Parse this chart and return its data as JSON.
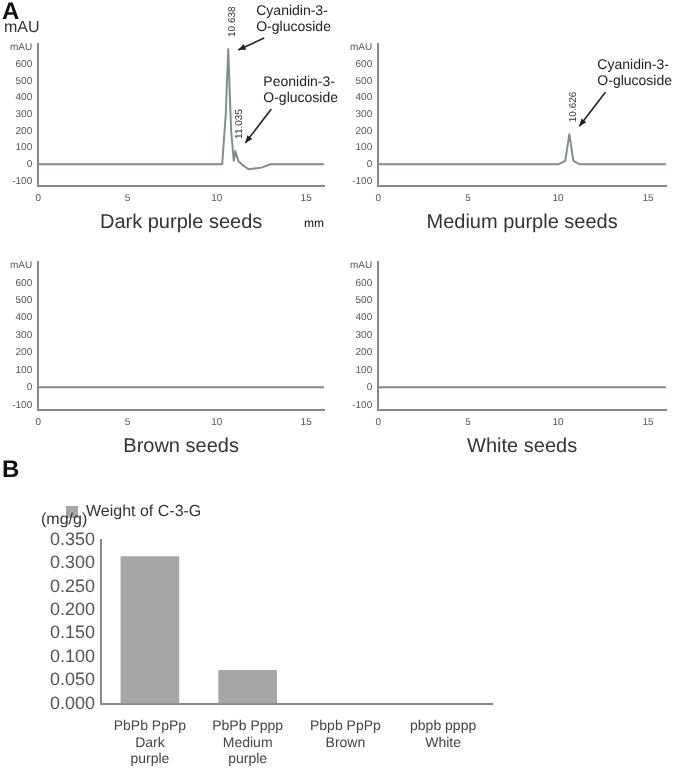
{
  "chart_data": [
    {
      "type": "line",
      "xlabel": "Dark purple seeds",
      "ylabel": "mAU",
      "annotations": [
        "A",
        "mm",
        {
          "text": "Cyanidin-3-\nO-glucoside",
          "x": 10.638,
          "y": 690
        },
        {
          "text": "Peonidin-3-\nO-glucoside",
          "x": 11.035,
          "y": 80
        },
        {
          "text": "10.638",
          "x": 10.638,
          "y": 690
        },
        {
          "text": "11.035",
          "x": 11.035,
          "y": 80
        }
      ],
      "xlim": [
        0,
        16
      ],
      "xticks": [
        0,
        5,
        10,
        15
      ],
      "ylim": [
        -130,
        720
      ],
      "yticks": [
        -100,
        0,
        100,
        200,
        300,
        400,
        500,
        600,
        {
          "value": 700,
          "label": "mAU"
        }
      ],
      "grid": false,
      "legend": false,
      "marker": "none",
      "line_style": "solid",
      "series": [
        {
          "color": "#7f8f8f",
          "x": [
            0,
            5,
            10,
            10.3,
            10.5,
            10.638,
            10.8,
            10.95,
            11.035,
            11.2,
            11.5,
            11.8,
            12.5,
            13,
            16
          ],
          "values": [
            0,
            0,
            0,
            0,
            300,
            690,
            200,
            20,
            80,
            20,
            -10,
            -30,
            -20,
            0,
            0
          ]
        }
      ]
    },
    {
      "type": "line",
      "xlabel": "Medium purple seeds",
      "annotations": [
        {
          "text": "Cyanidin-3-\nO-glucoside",
          "x": 10.626,
          "y": 180
        },
        {
          "text": "10.626",
          "x": 10.626,
          "y": 180
        }
      ],
      "xlim": [
        0,
        16
      ],
      "xticks": [
        0,
        5,
        10,
        15
      ],
      "ylim": [
        -130,
        720
      ],
      "yticks": [
        -100,
        0,
        100,
        200,
        300,
        400,
        500,
        600,
        {
          "value": 700,
          "label": "mAU"
        }
      ],
      "grid": false,
      "legend": false,
      "marker": "none",
      "line_style": "solid",
      "series": [
        {
          "color": "#7f8f8f",
          "x": [
            0,
            10,
            10.4,
            10.626,
            10.85,
            11.2,
            16
          ],
          "values": [
            0,
            0,
            20,
            180,
            20,
            0,
            0
          ]
        }
      ]
    },
    {
      "type": "line",
      "xlabel": "Brown seeds",
      "xlim": [
        0,
        16
      ],
      "xticks": [
        0,
        5,
        10,
        15
      ],
      "ylim": [
        -130,
        720
      ],
      "yticks": [
        -100,
        0,
        100,
        200,
        300,
        400,
        500,
        600,
        {
          "value": 700,
          "label": "mAU"
        }
      ],
      "grid": false,
      "legend": false,
      "marker": "none",
      "line_style": "solid",
      "series": [
        {
          "color": "#7f8f8f",
          "x": [
            0,
            16
          ],
          "values": [
            0,
            0
          ]
        }
      ]
    },
    {
      "type": "line",
      "xlabel": "White seeds",
      "xlim": [
        0,
        16
      ],
      "xticks": [
        0,
        5,
        10,
        15
      ],
      "ylim": [
        -130,
        720
      ],
      "yticks": [
        -100,
        0,
        100,
        200,
        300,
        400,
        500,
        600,
        {
          "value": 700,
          "label": "mAU"
        }
      ],
      "grid": false,
      "legend": false,
      "marker": "none",
      "line_style": "solid",
      "series": [
        {
          "color": "#7f8f8f",
          "x": [
            0,
            16
          ],
          "values": [
            0,
            0
          ]
        }
      ]
    },
    {
      "type": "bar",
      "ylabel": "(mg/g)",
      "annotations": [
        "B"
      ],
      "categories": [
        "PbPb PpPp\nDark\npurple",
        "PbPb Pppp\nMedium\npurple",
        "Pbpb PpPp\nBrown",
        "pbpb pppp\nWhite"
      ],
      "ylim": [
        0,
        0.35
      ],
      "yticks": [
        {
          "value": 0,
          "label": "0.000"
        },
        {
          "value": 0.05,
          "label": "0.050"
        },
        {
          "value": 0.1,
          "label": "0.100"
        },
        {
          "value": 0.15,
          "label": "0.150"
        },
        {
          "value": 0.2,
          "label": "0.200"
        },
        {
          "value": 0.25,
          "label": "0.250"
        },
        {
          "value": 0.3,
          "label": "0.300"
        },
        {
          "value": 0.35,
          "label": "0.350"
        }
      ],
      "grid": false,
      "legend": "top left",
      "series": [
        {
          "name": "Weight of C-3-G",
          "color": "#a6a6a6",
          "values": [
            0.315,
            0.072,
            0,
            0
          ]
        }
      ]
    }
  ]
}
